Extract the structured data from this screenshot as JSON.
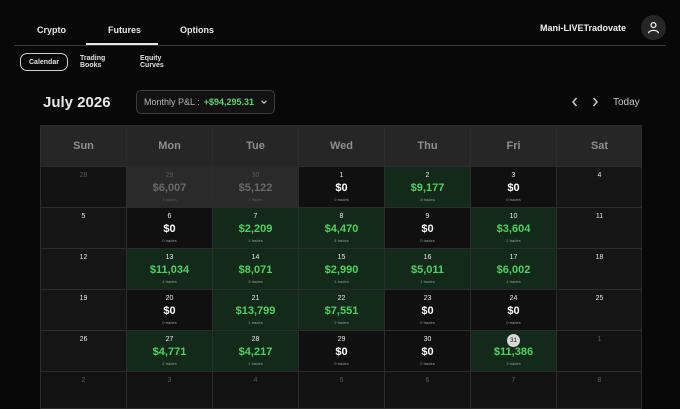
{
  "top_tabs": [
    "Crypto",
    "Futures",
    "Options"
  ],
  "account_name": "Mani-LIVETradovate",
  "sub_tabs": [
    "Calendar",
    "Trading Books",
    "Equity Curves"
  ],
  "month_title": "July 2026",
  "monthly_pnl": {
    "label": "Monthly P&L :",
    "value": "+$94,295.31"
  },
  "nav": {
    "today_label": "Today"
  },
  "weekdays": [
    "Sun",
    "Mon",
    "Tue",
    "Wed",
    "Thu",
    "Fri",
    "Sat"
  ],
  "weeks": [
    [
      {
        "day": "28",
        "kind": "faded"
      },
      {
        "day": "29",
        "amount": "$6,007",
        "trades": "3 trades",
        "kind": "prev"
      },
      {
        "day": "30",
        "amount": "$5,122",
        "trades": "1 trades",
        "kind": "prev"
      },
      {
        "day": "1",
        "amount": "$0",
        "trades": "0 trades",
        "kind": "zero"
      },
      {
        "day": "2",
        "amount": "$9,177",
        "trades": "3 trades",
        "kind": "profit"
      },
      {
        "day": "3",
        "amount": "$0",
        "trades": "0 trades",
        "kind": "zero"
      },
      {
        "day": "4",
        "kind": "weekend"
      }
    ],
    [
      {
        "day": "5",
        "kind": "weekend"
      },
      {
        "day": "6",
        "amount": "$0",
        "trades": "0 trades",
        "kind": "zero"
      },
      {
        "day": "7",
        "amount": "$2,209",
        "trades": "1 trades",
        "kind": "profit"
      },
      {
        "day": "8",
        "amount": "$4,470",
        "trades": "4 trades",
        "kind": "profit"
      },
      {
        "day": "9",
        "amount": "$0",
        "trades": "0 trades",
        "kind": "zero"
      },
      {
        "day": "10",
        "amount": "$3,604",
        "trades": "2 trades",
        "kind": "profit"
      },
      {
        "day": "11",
        "kind": "weekend"
      }
    ],
    [
      {
        "day": "12",
        "kind": "weekend"
      },
      {
        "day": "13",
        "amount": "$11,034",
        "trades": "1 trades",
        "kind": "profit"
      },
      {
        "day": "14",
        "amount": "$8,071",
        "trades": "3 trades",
        "kind": "profit"
      },
      {
        "day": "15",
        "amount": "$2,990",
        "trades": "1 trades",
        "kind": "profit"
      },
      {
        "day": "16",
        "amount": "$5,011",
        "trades": "1 trades",
        "kind": "profit"
      },
      {
        "day": "17",
        "amount": "$6,002",
        "trades": "1 trades",
        "kind": "profit"
      },
      {
        "day": "18",
        "kind": "weekend"
      }
    ],
    [
      {
        "day": "19",
        "kind": "weekend"
      },
      {
        "day": "20",
        "amount": "$0",
        "trades": "0 trades",
        "kind": "zero"
      },
      {
        "day": "21",
        "amount": "$13,799",
        "trades": "1 trades",
        "kind": "profit"
      },
      {
        "day": "22",
        "amount": "$7,551",
        "trades": "2 trades",
        "kind": "profit"
      },
      {
        "day": "23",
        "amount": "$0",
        "trades": "0 trades",
        "kind": "zero"
      },
      {
        "day": "24",
        "amount": "$0",
        "trades": "0 trades",
        "kind": "zero"
      },
      {
        "day": "25",
        "kind": "weekend"
      }
    ],
    [
      {
        "day": "26",
        "kind": "weekend"
      },
      {
        "day": "27",
        "amount": "$4,771",
        "trades": "2 trades",
        "kind": "profit"
      },
      {
        "day": "28",
        "amount": "$4,217",
        "trades": "1 trades",
        "kind": "profit"
      },
      {
        "day": "29",
        "amount": "$0",
        "trades": "0 trades",
        "kind": "zero"
      },
      {
        "day": "30",
        "amount": "$0",
        "trades": "0 trades",
        "kind": "zero"
      },
      {
        "day": "31",
        "amount": "$11,386",
        "trades": "3 trades",
        "kind": "profit",
        "today": true
      },
      {
        "day": "1",
        "kind": "faded"
      }
    ],
    [
      {
        "day": "2",
        "kind": "faded"
      },
      {
        "day": "3",
        "kind": "faded"
      },
      {
        "day": "4",
        "kind": "faded"
      },
      {
        "day": "5",
        "kind": "faded"
      },
      {
        "day": "6",
        "kind": "faded"
      },
      {
        "day": "7",
        "kind": "faded"
      },
      {
        "day": "8",
        "kind": "faded"
      }
    ]
  ]
}
